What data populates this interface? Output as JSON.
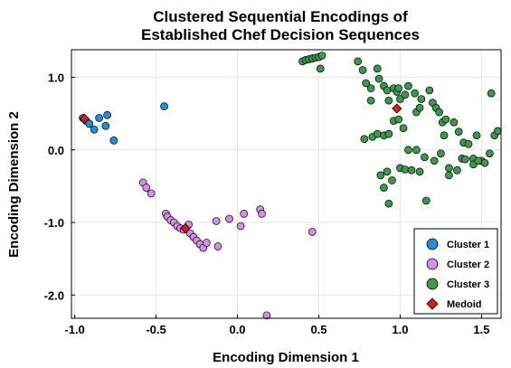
{
  "chart_data": {
    "type": "scatter",
    "title_lines": [
      "Clustered Sequential Encodings of",
      "Established Chef Decision Sequences"
    ],
    "xlabel": "Encoding Dimension 1",
    "ylabel": "Encoding Dimension 2",
    "xlim": [
      -1.02,
      1.62
    ],
    "ylim": [
      -2.32,
      1.38
    ],
    "x_ticks": [
      -1.0,
      -0.5,
      0.0,
      0.5,
      1.0,
      1.5
    ],
    "x_tick_labels": [
      "-1.0",
      "-0.5",
      "0.0",
      "0.5",
      "1.0",
      "1.5"
    ],
    "y_ticks": [
      -2.0,
      -1.0,
      0.0,
      1.0
    ],
    "y_tick_labels": [
      "-2.0",
      "-1.0",
      "0.0",
      "1.0"
    ],
    "grid": true,
    "legend_position": "bottom-right",
    "series": [
      {
        "name": "Cluster 1",
        "color": "#1f8fe0",
        "points": [
          [
            -0.95,
            0.44
          ],
          [
            -0.93,
            0.4
          ],
          [
            -0.91,
            0.36
          ],
          [
            -0.88,
            0.28
          ],
          [
            -0.85,
            0.44
          ],
          [
            -0.8,
            0.48
          ],
          [
            -0.81,
            0.33
          ],
          [
            -0.76,
            0.13
          ],
          [
            -0.45,
            0.6
          ]
        ]
      },
      {
        "name": "Cluster 2",
        "color": "#d88ee8",
        "points": [
          [
            -0.58,
            -0.45
          ],
          [
            -0.56,
            -0.52
          ],
          [
            -0.53,
            -0.6
          ],
          [
            -0.44,
            -0.88
          ],
          [
            -0.43,
            -0.92
          ],
          [
            -0.41,
            -0.97
          ],
          [
            -0.39,
            -1.0
          ],
          [
            -0.37,
            -1.05
          ],
          [
            -0.35,
            -1.08
          ],
          [
            -0.33,
            -1.1
          ],
          [
            -0.3,
            -1.03
          ],
          [
            -0.29,
            -1.15
          ],
          [
            -0.27,
            -1.2
          ],
          [
            -0.25,
            -1.25
          ],
          [
            -0.23,
            -1.3
          ],
          [
            -0.21,
            -1.35
          ],
          [
            -0.19,
            -1.28
          ],
          [
            -0.13,
            -0.98
          ],
          [
            -0.12,
            -1.33
          ],
          [
            -0.05,
            -0.95
          ],
          [
            0.02,
            -1.05
          ],
          [
            0.04,
            -0.88
          ],
          [
            0.14,
            -0.82
          ],
          [
            0.15,
            -0.88
          ],
          [
            0.18,
            -2.28
          ],
          [
            0.46,
            -1.13
          ]
        ]
      },
      {
        "name": "Cluster 3",
        "color": "#3a9a4a",
        "points": [
          [
            0.4,
            1.22
          ],
          [
            0.42,
            1.24
          ],
          [
            0.44,
            1.25
          ],
          [
            0.46,
            1.26
          ],
          [
            0.48,
            1.27
          ],
          [
            0.5,
            1.28
          ],
          [
            0.52,
            1.3
          ],
          [
            0.51,
            1.12
          ],
          [
            0.74,
            1.22
          ],
          [
            0.77,
            1.1
          ],
          [
            0.79,
            0.92
          ],
          [
            0.82,
            0.85
          ],
          [
            0.82,
            0.68
          ],
          [
            0.86,
            1.12
          ],
          [
            0.87,
            0.98
          ],
          [
            0.9,
            0.88
          ],
          [
            0.92,
            0.82
          ],
          [
            0.93,
            0.68
          ],
          [
            0.96,
            0.85
          ],
          [
            0.98,
            0.8
          ],
          [
            0.99,
            0.85
          ],
          [
            1.0,
            0.7
          ],
          [
            1.03,
            0.76
          ],
          [
            1.05,
            0.88
          ],
          [
            1.09,
            0.78
          ],
          [
            1.1,
            0.52
          ],
          [
            1.12,
            0.58
          ],
          [
            1.13,
            0.7
          ],
          [
            1.18,
            0.82
          ],
          [
            1.2,
            0.65
          ],
          [
            1.22,
            0.58
          ],
          [
            1.24,
            0.52
          ],
          [
            1.26,
            0.38
          ],
          [
            1.28,
            0.42
          ],
          [
            1.33,
            0.38
          ],
          [
            1.36,
            0.25
          ],
          [
            1.39,
            0.1
          ],
          [
            1.42,
            0.08
          ],
          [
            1.45,
            -0.12
          ],
          [
            1.47,
            0.2
          ],
          [
            1.5,
            -0.15
          ],
          [
            1.52,
            -0.18
          ],
          [
            1.56,
            0.78
          ],
          [
            1.58,
            0.2
          ],
          [
            1.6,
            0.26
          ],
          [
            1.55,
            -0.05
          ],
          [
            0.78,
            0.15
          ],
          [
            0.83,
            0.18
          ],
          [
            0.86,
            0.22
          ],
          [
            0.9,
            0.2
          ],
          [
            0.93,
            0.22
          ],
          [
            0.96,
            0.4
          ],
          [
            0.99,
            0.42
          ],
          [
            1.02,
            0.3
          ],
          [
            1.05,
            0.0
          ],
          [
            1.1,
            0.0
          ],
          [
            1.15,
            -0.1
          ],
          [
            1.25,
            -0.05
          ],
          [
            1.3,
            -0.25
          ],
          [
            1.35,
            -0.28
          ],
          [
            1.38,
            -0.12
          ],
          [
            1.4,
            -0.13
          ],
          [
            1.45,
            -0.2
          ],
          [
            1.48,
            -0.15
          ],
          [
            0.88,
            -0.35
          ],
          [
            0.92,
            -0.3
          ],
          [
            0.95,
            -0.42
          ],
          [
            1.0,
            -0.25
          ],
          [
            1.03,
            -0.27
          ],
          [
            1.07,
            -0.28
          ],
          [
            1.12,
            -0.3
          ],
          [
            1.16,
            -0.7
          ],
          [
            1.21,
            -0.15
          ],
          [
            1.27,
            0.2
          ],
          [
            1.3,
            -0.35
          ],
          [
            0.9,
            -0.52
          ],
          [
            0.93,
            -0.74
          ]
        ]
      },
      {
        "name": "Medoid",
        "color": "#e0181c",
        "marker": "diamond",
        "points": [
          [
            -0.94,
            0.43
          ],
          [
            -0.32,
            -1.08
          ],
          [
            0.98,
            0.57
          ]
        ]
      }
    ]
  }
}
